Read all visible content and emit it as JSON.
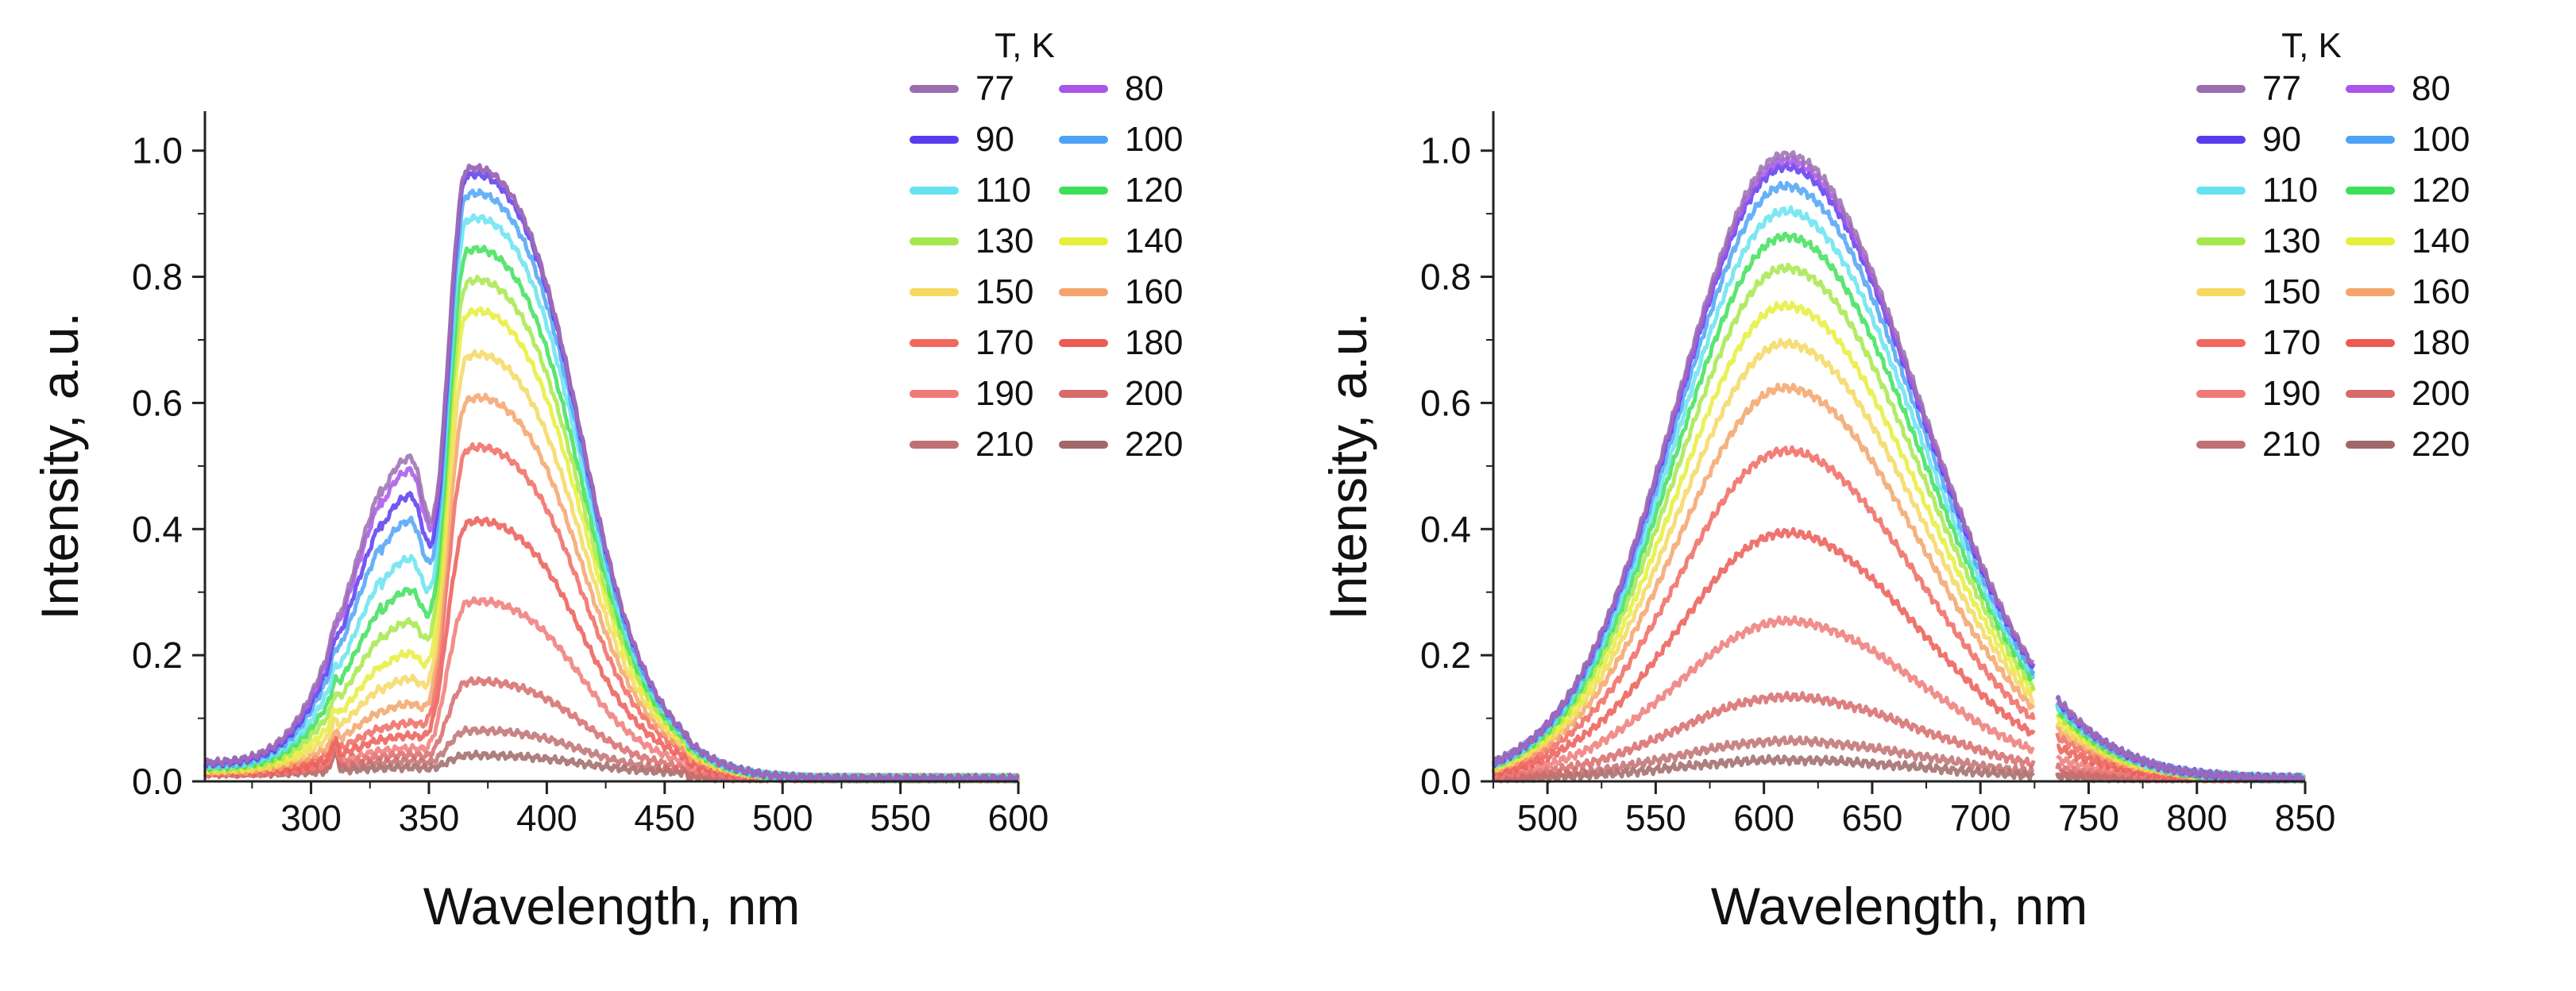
{
  "chart_data": [
    {
      "type": "line",
      "panel": "left",
      "title": "",
      "xlabel": "Wavelength, nm",
      "ylabel": "Intensity, a.u.",
      "xlim": [
        255,
        600
      ],
      "ylim": [
        0,
        1.05
      ],
      "xticks": [
        300,
        350,
        400,
        450,
        500,
        550,
        600
      ],
      "yticks": [
        0.0,
        0.2,
        0.4,
        0.6,
        0.8,
        1.0
      ],
      "x_tick_labels": [
        "300",
        "350",
        "400",
        "450",
        "500",
        "550",
        "600"
      ],
      "y_tick_labels": [
        "0.0",
        "0.2",
        "0.4",
        "0.6",
        "0.8",
        "1.0"
      ],
      "legend_title": "T, K",
      "legend_position": "top-right",
      "series": [
        {
          "name": "77",
          "color": "#9b6db0",
          "peak": 0.98,
          "uv_shoulder": 0.5
        },
        {
          "name": "80",
          "color": "#a855e8",
          "peak": 0.98,
          "uv_shoulder": 0.48
        },
        {
          "name": "90",
          "color": "#5b3bf0",
          "peak": 0.97,
          "uv_shoulder": 0.44
        },
        {
          "name": "100",
          "color": "#4da3f5",
          "peak": 0.94,
          "uv_shoulder": 0.4
        },
        {
          "name": "110",
          "color": "#66e3f0",
          "peak": 0.9,
          "uv_shoulder": 0.34
        },
        {
          "name": "120",
          "color": "#3ee05a",
          "peak": 0.85,
          "uv_shoulder": 0.29
        },
        {
          "name": "130",
          "color": "#a6e84c",
          "peak": 0.8,
          "uv_shoulder": 0.24
        },
        {
          "name": "140",
          "color": "#e6ef3a",
          "peak": 0.75,
          "uv_shoulder": 0.19
        },
        {
          "name": "150",
          "color": "#f5d860",
          "peak": 0.68,
          "uv_shoulder": 0.15
        },
        {
          "name": "160",
          "color": "#f5a36a",
          "peak": 0.61,
          "uv_shoulder": 0.11
        },
        {
          "name": "170",
          "color": "#f06860",
          "peak": 0.53,
          "uv_shoulder": 0.08
        },
        {
          "name": "180",
          "color": "#ec5a55",
          "peak": 0.41,
          "uv_shoulder": 0.06
        },
        {
          "name": "190",
          "color": "#ef7a78",
          "peak": 0.28,
          "uv_shoulder": 0.04
        },
        {
          "name": "200",
          "color": "#d76a6a",
          "peak": 0.15,
          "uv_shoulder": 0.03
        },
        {
          "name": "210",
          "color": "#c07070",
          "peak": 0.07,
          "uv_shoulder": 0.02
        },
        {
          "name": "220",
          "color": "#a06868",
          "peak": 0.03,
          "uv_shoulder": 0.01
        }
      ]
    },
    {
      "type": "line",
      "panel": "right",
      "title": "",
      "xlabel": "Wavelength, nm",
      "ylabel": "Intensity, a.u.",
      "xlim": [
        475,
        850
      ],
      "ylim": [
        0,
        1.05
      ],
      "gap": [
        725,
        735
      ],
      "xticks": [
        500,
        550,
        600,
        650,
        700,
        750,
        800,
        850
      ],
      "yticks": [
        0.0,
        0.2,
        0.4,
        0.6,
        0.8,
        1.0
      ],
      "x_tick_labels": [
        "500",
        "550",
        "600",
        "650",
        "700",
        "750",
        "800",
        "850"
      ],
      "y_tick_labels": [
        "0.0",
        "0.2",
        "0.4",
        "0.6",
        "0.8",
        "1.0"
      ],
      "legend_title": "T, K",
      "legend_position": "top-right",
      "series": [
        {
          "name": "77",
          "color": "#9b6db0",
          "peak": 0.99
        },
        {
          "name": "80",
          "color": "#a855e8",
          "peak": 0.98
        },
        {
          "name": "90",
          "color": "#5b3bf0",
          "peak": 0.97
        },
        {
          "name": "100",
          "color": "#4da3f5",
          "peak": 0.94
        },
        {
          "name": "110",
          "color": "#66e3f0",
          "peak": 0.9
        },
        {
          "name": "120",
          "color": "#3ee05a",
          "peak": 0.86
        },
        {
          "name": "130",
          "color": "#a6e84c",
          "peak": 0.81
        },
        {
          "name": "140",
          "color": "#e6ef3a",
          "peak": 0.75
        },
        {
          "name": "150",
          "color": "#f5d860",
          "peak": 0.69
        },
        {
          "name": "160",
          "color": "#f5a36a",
          "peak": 0.62
        },
        {
          "name": "170",
          "color": "#f06860",
          "peak": 0.52
        },
        {
          "name": "180",
          "color": "#ec5a55",
          "peak": 0.39
        },
        {
          "name": "190",
          "color": "#ef7a78",
          "peak": 0.25
        },
        {
          "name": "200",
          "color": "#d76a6a",
          "peak": 0.13
        },
        {
          "name": "210",
          "color": "#c07070",
          "peak": 0.06
        },
        {
          "name": "220",
          "color": "#a06868",
          "peak": 0.03
        }
      ]
    }
  ]
}
